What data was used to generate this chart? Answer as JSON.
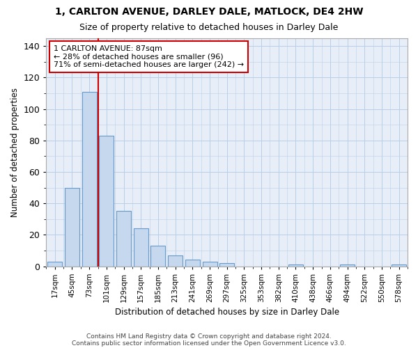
{
  "title1": "1, CARLTON AVENUE, DARLEY DALE, MATLOCK, DE4 2HW",
  "title2": "Size of property relative to detached houses in Darley Dale",
  "xlabel": "Distribution of detached houses by size in Darley Dale",
  "ylabel": "Number of detached properties",
  "footer1": "Contains HM Land Registry data © Crown copyright and database right 2024.",
  "footer2": "Contains public sector information licensed under the Open Government Licence v3.0.",
  "bin_labels": [
    "17sqm",
    "45sqm",
    "73sqm",
    "101sqm",
    "129sqm",
    "157sqm",
    "185sqm",
    "213sqm",
    "241sqm",
    "269sqm",
    "297sqm",
    "325sqm",
    "353sqm",
    "382sqm",
    "410sqm",
    "438sqm",
    "466sqm",
    "494sqm",
    "522sqm",
    "550sqm",
    "578sqm"
  ],
  "bar_values": [
    3,
    50,
    111,
    83,
    35,
    24,
    13,
    7,
    4,
    3,
    2,
    0,
    0,
    0,
    1,
    0,
    0,
    1,
    0,
    0,
    1
  ],
  "bar_color": "#c5d8ed",
  "bar_edge_color": "#6699cc",
  "grid_color": "#b8cfe8",
  "axes_bg_color": "#e8eef8",
  "property_label": "1 CARLTON AVENUE: 87sqm",
  "annotation_line1": "← 28% of detached houses are smaller (96)",
  "annotation_line2": "71% of semi-detached houses are larger (242) →",
  "vline_color": "#cc0000",
  "ylim": [
    0,
    145
  ],
  "yticks": [
    0,
    20,
    40,
    60,
    80,
    100,
    120,
    140
  ]
}
